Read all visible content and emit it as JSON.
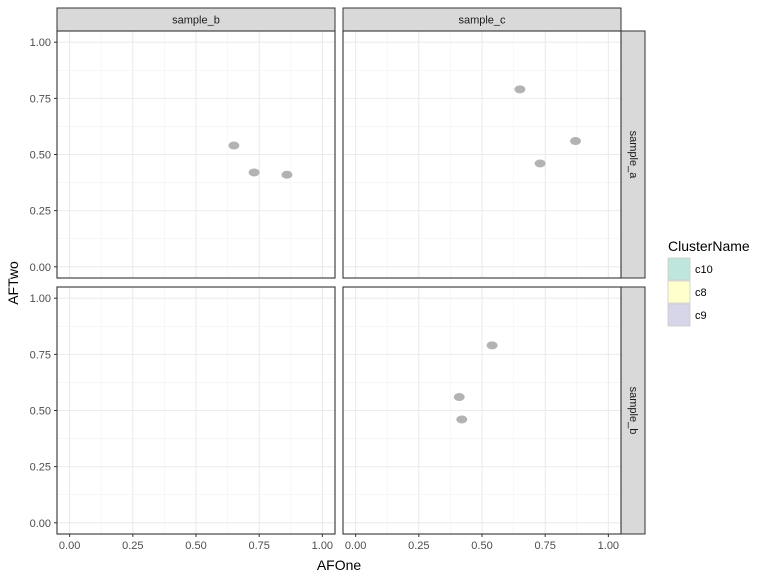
{
  "chart_data": {
    "type": "scatter",
    "xlabel": "AFOne",
    "ylabel": "AFTwo",
    "xlim": [
      -0.05,
      1.05
    ],
    "ylim": [
      -0.05,
      1.05
    ],
    "x_ticks": [
      "0.00",
      "0.25",
      "0.50",
      "0.75",
      "1.00"
    ],
    "y_ticks": [
      "0.00",
      "0.25",
      "0.50",
      "0.75",
      "1.00"
    ],
    "grid": true,
    "facet_columns": [
      "sample_b",
      "sample_c"
    ],
    "facet_rows": [
      "sample_a",
      "sample_b"
    ],
    "legend": {
      "title": "ClusterName",
      "position": "right",
      "entries": [
        {
          "label": "c10",
          "color": "#bfe6dc"
        },
        {
          "label": "c8",
          "color": "#ffffcc"
        },
        {
          "label": "c9",
          "color": "#d7d5e8"
        }
      ]
    },
    "marker_color": "#b3b3b3",
    "panels": [
      {
        "col": "sample_b",
        "row": "sample_a",
        "points": [
          [
            0.65,
            0.54
          ],
          [
            0.73,
            0.42
          ],
          [
            0.86,
            0.41
          ]
        ]
      },
      {
        "col": "sample_c",
        "row": "sample_a",
        "points": [
          [
            0.65,
            0.79
          ],
          [
            0.73,
            0.46
          ],
          [
            0.87,
            0.56
          ]
        ]
      },
      {
        "col": "sample_b",
        "row": "sample_b",
        "points": []
      },
      {
        "col": "sample_c",
        "row": "sample_b",
        "points": [
          [
            0.54,
            0.79
          ],
          [
            0.41,
            0.56
          ],
          [
            0.42,
            0.46
          ]
        ]
      }
    ]
  }
}
